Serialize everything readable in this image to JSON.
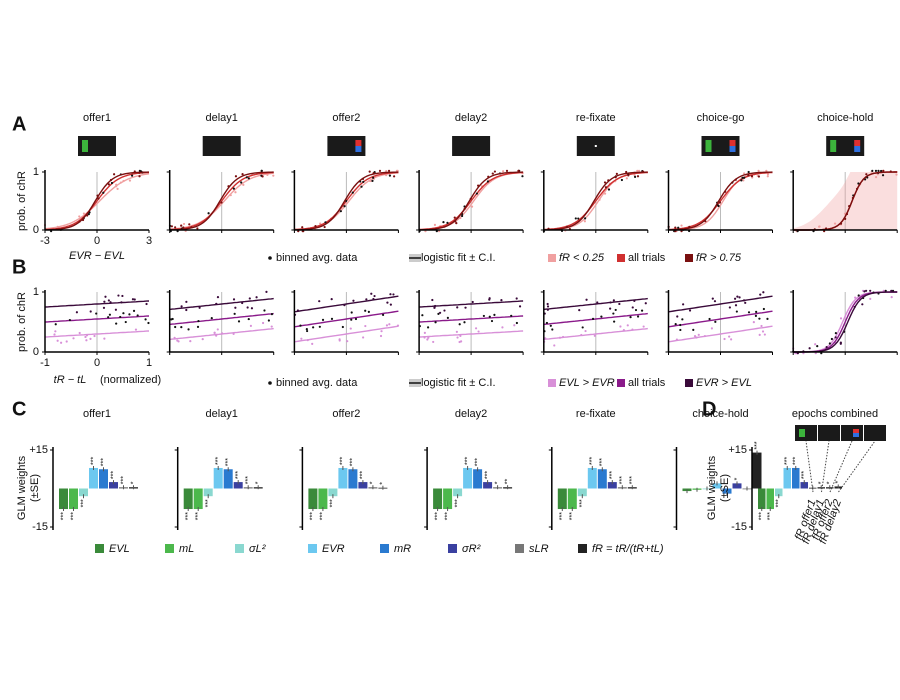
{
  "panel_labels": [
    "A",
    "B",
    "C",
    "D"
  ],
  "panel_a": {
    "epochs": [
      "offer1",
      "delay1",
      "offer2",
      "delay2",
      "re-fixate",
      "choice-go",
      "choice-hold"
    ],
    "ylabel": "prob. of chR",
    "ylim": [
      0,
      1
    ],
    "yticks": [
      0,
      1
    ],
    "xlim": [
      -3,
      3
    ],
    "xticks": [
      -3,
      0,
      3
    ],
    "xlabel": "EVR − EVL",
    "legend": [
      "binned avg. data",
      "logistic fit ± C.I.",
      "fR < 0.25",
      "all trials",
      "fR > 0.75"
    ],
    "colors": [
      "#f0a0a0",
      "#d03030",
      "#7a1010"
    ]
  },
  "panel_b": {
    "ylabel": "prob. of chR",
    "ylim": [
      0,
      1
    ],
    "yticks": [
      0,
      1
    ],
    "xlim": [
      -1,
      1
    ],
    "xticks": [
      -1,
      0,
      1
    ],
    "xlabel": "tR − tL",
    "xlabel_note": "(normalized)",
    "legend": [
      "binned avg. data",
      "logistic fit ± C.I.",
      "EVL > EVR",
      "all trials",
      "EVR > EVL"
    ],
    "colors": [
      "#d890d8",
      "#8a1a8a",
      "#3a0a3a"
    ]
  },
  "panel_c": {
    "ylabel": "GLM weights",
    "ylabel2": "(±SE)",
    "ylim": [
      -15,
      15
    ],
    "yticks": [
      {
        "value": 15,
        "label": "+15"
      },
      -15
    ],
    "regressors": [
      "EVL",
      "mL",
      "σL²",
      "EVR",
      "mR",
      "σR²",
      "sLR",
      "fR = tR/(tR+tL)"
    ],
    "colors": [
      "#3a8a3a",
      "#4cb84c",
      "#8ad8d0",
      "#6cc8f0",
      "#2a7ad0",
      "#3a40a0",
      "#777777",
      "#222222"
    ],
    "epochs": [
      {
        "title": "offer1",
        "values": [
          -8,
          -8,
          -3,
          8,
          7.5,
          2.5,
          0.5,
          0.5
        ],
        "sig": [
          "***",
          "***",
          "***",
          "***",
          "***",
          "***",
          "***",
          "*"
        ]
      },
      {
        "title": "delay1",
        "values": [
          -8,
          -8,
          -3,
          8,
          7.5,
          2.5,
          0.5,
          0.5
        ],
        "sig": [
          "***",
          "***",
          "***",
          "***",
          "***",
          "***",
          "***",
          "*"
        ]
      },
      {
        "title": "offer2",
        "values": [
          -8,
          -8,
          -3,
          8,
          7.5,
          2.5,
          0.5,
          0.3
        ],
        "sig": [
          "***",
          "***",
          "***",
          "***",
          "***",
          "***",
          "*",
          "*"
        ]
      },
      {
        "title": "delay2",
        "values": [
          -8,
          -8,
          -3,
          8,
          7.5,
          2.5,
          0.5,
          0.5
        ],
        "sig": [
          "***",
          "***",
          "***",
          "***",
          "***",
          "***",
          "*",
          "**"
        ]
      },
      {
        "title": "re-fixate",
        "values": [
          -8,
          -8,
          -3,
          8,
          7.5,
          2.5,
          0.5,
          0.5
        ],
        "sig": [
          "***",
          "***",
          "***",
          "***",
          "***",
          "***",
          "***",
          "***"
        ]
      },
      {
        "title": "choice-hold",
        "values": [
          -1,
          -0.5,
          0,
          2,
          -2,
          2,
          0,
          14
        ],
        "sig": [
          "",
          "",
          "",
          "",
          "",
          "*",
          "",
          "***"
        ]
      }
    ]
  },
  "panel_d": {
    "title": "epochs combined",
    "values": [
      -8,
      -8,
      -3,
      8,
      8,
      2.5,
      0.3,
      0.5,
      0.5,
      0.8
    ],
    "sig": [
      "***",
      "***",
      "***",
      "***",
      "***",
      "***",
      "",
      "*",
      "*",
      "*"
    ],
    "colors": [
      "#3a8a3a",
      "#4cb84c",
      "#8ad8d0",
      "#6cc8f0",
      "#2a7ad0",
      "#3a40a0",
      "#222222",
      "#222222",
      "#222222",
      "#222222"
    ],
    "labels": [
      "fR offer1",
      "fR delay1",
      "fR offer2",
      "fR delay2"
    ]
  }
}
